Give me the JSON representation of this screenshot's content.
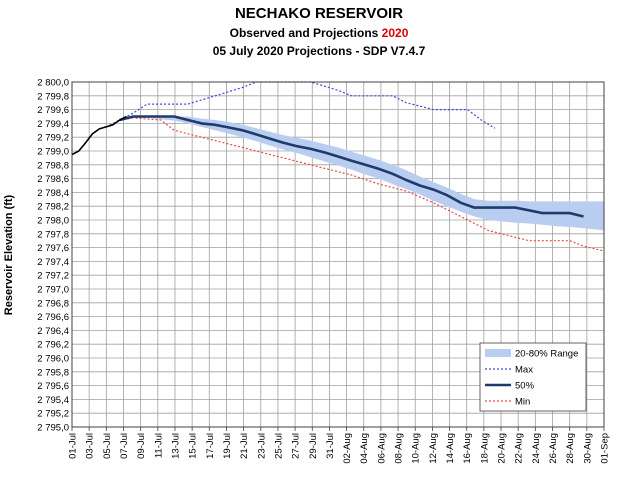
{
  "title": "NECHAKO RESERVOIR",
  "subtitle_prefix": "Observed and Projections ",
  "subtitle_year": "2020",
  "subtitle_line2": "05 July 2020 Projections - SDP V7.4.7",
  "colors": {
    "range_fill": "#b8cdf0",
    "max_line": "#3b48d6",
    "median_line": "#1f3b6b",
    "min_line": "#e84a4a",
    "observed_line": "#000000",
    "year_highlight": "#e00000",
    "grid": "#a0a0a0"
  },
  "chart_data": {
    "type": "line",
    "title": "NECHAKO RESERVOIR",
    "ylabel": "Reservoir Elevation (ft)",
    "xlabel": "",
    "ylim": [
      2795.0,
      2800.0
    ],
    "yticks": [
      "2 795,0",
      "2 795,2",
      "2 795,4",
      "2 795,6",
      "2 795,8",
      "2 796,0",
      "2 796,2",
      "2 796,4",
      "2 796,6",
      "2 796,8",
      "2 797,0",
      "2 797,2",
      "2 797,4",
      "2 797,6",
      "2 797,8",
      "2 798,0",
      "2 798,2",
      "2 798,4",
      "2 798,6",
      "2 798,8",
      "2 799,0",
      "2 799,2",
      "2 799,4",
      "2 799,6",
      "2 799,8",
      "2 800,0"
    ],
    "xticks": [
      "01-Jul",
      "03-Jul",
      "05-Jul",
      "07-Jul",
      "09-Jul",
      "11-Jul",
      "13-Jul",
      "15-Jul",
      "17-Jul",
      "19-Jul",
      "21-Jul",
      "23-Jul",
      "25-Jul",
      "27-Jul",
      "29-Jul",
      "31-Jul",
      "02-Aug",
      "04-Aug",
      "06-Aug",
      "08-Aug",
      "10-Aug",
      "12-Aug",
      "14-Aug",
      "16-Aug",
      "18-Aug",
      "20-Aug",
      "22-Aug",
      "24-Aug",
      "26-Aug",
      "28-Aug",
      "30-Aug",
      "01-Sep"
    ],
    "grid": true,
    "legend_position": "bottom-right",
    "legend": [
      "20-80% Range",
      "Max",
      "50%",
      "Min"
    ],
    "series": [
      {
        "name": "Max",
        "style": "dotted",
        "points": [
          [
            5,
            2799.35
          ],
          [
            7,
            2799.45
          ],
          [
            9,
            2799.55
          ],
          [
            11,
            2799.68
          ],
          [
            17,
            2799.68
          ],
          [
            21,
            2799.8
          ],
          [
            25,
            2799.92
          ],
          [
            27,
            2800.0
          ],
          [
            35,
            2800.0
          ],
          [
            39,
            2799.88
          ],
          [
            41,
            2799.8
          ],
          [
            47,
            2799.8
          ],
          [
            49,
            2799.7
          ],
          [
            53,
            2799.6
          ],
          [
            58,
            2799.6
          ],
          [
            60,
            2799.45
          ],
          [
            62,
            2799.33
          ]
        ]
      },
      {
        "name": "50%",
        "style": "solid",
        "points": [
          [
            7,
            2799.45
          ],
          [
            9,
            2799.5
          ],
          [
            15,
            2799.5
          ],
          [
            17,
            2799.45
          ],
          [
            19,
            2799.4
          ],
          [
            21,
            2799.38
          ],
          [
            23,
            2799.34
          ],
          [
            25,
            2799.3
          ],
          [
            27,
            2799.24
          ],
          [
            29,
            2799.18
          ],
          [
            31,
            2799.12
          ],
          [
            33,
            2799.07
          ],
          [
            35,
            2799.03
          ],
          [
            37,
            2798.98
          ],
          [
            39,
            2798.92
          ],
          [
            41,
            2798.86
          ],
          [
            43,
            2798.8
          ],
          [
            45,
            2798.74
          ],
          [
            47,
            2798.67
          ],
          [
            49,
            2798.58
          ],
          [
            51,
            2798.5
          ],
          [
            53,
            2798.44
          ],
          [
            55,
            2798.36
          ],
          [
            57,
            2798.25
          ],
          [
            59,
            2798.18
          ],
          [
            65,
            2798.18
          ],
          [
            67,
            2798.14
          ],
          [
            69,
            2798.1
          ],
          [
            73,
            2798.1
          ],
          [
            75,
            2798.05
          ]
        ]
      },
      {
        "name": "Min",
        "style": "dotted",
        "points": [
          [
            7,
            2799.45
          ],
          [
            9,
            2799.48
          ],
          [
            13,
            2799.45
          ],
          [
            15,
            2799.3
          ],
          [
            19,
            2799.2
          ],
          [
            21,
            2799.15
          ],
          [
            25,
            2799.05
          ],
          [
            29,
            2798.95
          ],
          [
            33,
            2798.85
          ],
          [
            37,
            2798.75
          ],
          [
            41,
            2798.65
          ],
          [
            45,
            2798.52
          ],
          [
            49,
            2798.42
          ],
          [
            53,
            2798.25
          ],
          [
            57,
            2798.05
          ],
          [
            61,
            2797.85
          ],
          [
            65,
            2797.75
          ],
          [
            67,
            2797.7
          ],
          [
            73,
            2797.7
          ],
          [
            75,
            2797.62
          ],
          [
            78,
            2797.55
          ]
        ]
      },
      {
        "name": "Observed",
        "style": "solid",
        "points": [
          [
            0,
            2798.95
          ],
          [
            1,
            2799.0
          ],
          [
            2,
            2799.12
          ],
          [
            3,
            2799.25
          ],
          [
            4,
            2799.32
          ],
          [
            5,
            2799.35
          ],
          [
            6,
            2799.38
          ],
          [
            7,
            2799.45
          ],
          [
            8,
            2799.5
          ]
        ]
      }
    ],
    "range_20_80": {
      "name": "20-80% Range",
      "x": [
        9,
        11,
        13,
        15,
        17,
        19,
        21,
        23,
        25,
        27,
        29,
        31,
        33,
        35,
        37,
        39,
        41,
        43,
        45,
        47,
        49,
        51,
        53,
        55,
        57,
        59,
        61,
        63,
        65,
        67,
        69,
        71,
        73,
        75,
        78
      ],
      "upper": [
        2799.5,
        2799.5,
        2799.5,
        2799.5,
        2799.5,
        2799.47,
        2799.45,
        2799.42,
        2799.38,
        2799.33,
        2799.28,
        2799.23,
        2799.19,
        2799.15,
        2799.1,
        2799.05,
        2798.99,
        2798.93,
        2798.87,
        2798.8,
        2798.72,
        2798.63,
        2798.55,
        2798.47,
        2798.38,
        2798.3,
        2798.28,
        2798.28,
        2798.28,
        2798.27,
        2798.27,
        2798.27,
        2798.27,
        2798.27,
        2798.27
      ],
      "lower": [
        2799.48,
        2799.48,
        2799.46,
        2799.44,
        2799.4,
        2799.35,
        2799.3,
        2799.25,
        2799.2,
        2799.14,
        2799.08,
        2799.02,
        2798.97,
        2798.91,
        2798.85,
        2798.79,
        2798.73,
        2798.66,
        2798.6,
        2798.52,
        2798.45,
        2798.37,
        2798.28,
        2798.2,
        2798.12,
        2798.05,
        2798.0,
        2797.98,
        2797.96,
        2797.95,
        2797.93,
        2797.91,
        2797.9,
        2797.88,
        2797.85
      ]
    }
  }
}
